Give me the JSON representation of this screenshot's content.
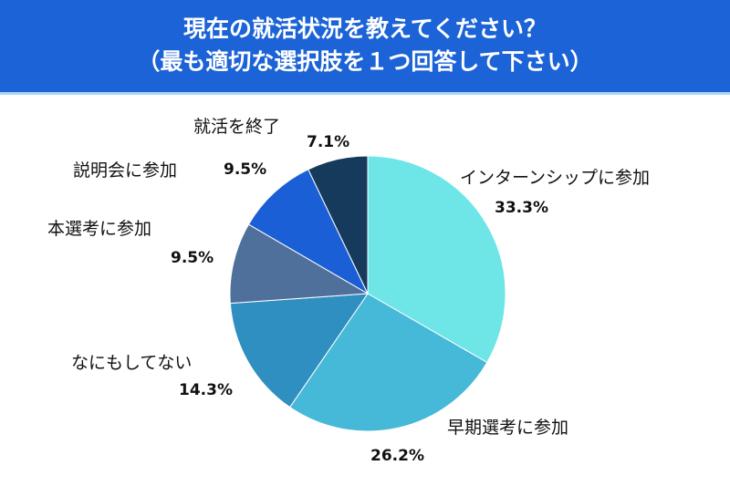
{
  "chart_data": {
    "type": "pie",
    "title": "現在の就活状況を教えてください？",
    "subtitle": "（最も適切な選択肢を１つ回答して下さい）",
    "slices": [
      {
        "label": "インターンシップに参加",
        "value": 33.3,
        "display": "33.3%",
        "color": "#6ee5e6"
      },
      {
        "label": "早期選考に参加",
        "value": 26.2,
        "display": "26.2%",
        "color": "#45b9d7"
      },
      {
        "label": "なにもしてない",
        "value": 14.3,
        "display": "14.3%",
        "color": "#2f8fc0"
      },
      {
        "label": "本選考に参加",
        "value": 9.5,
        "display": "9.5%",
        "color": "#50709c"
      },
      {
        "label": "説明会に参加",
        "value": 9.5,
        "display": "9.5%",
        "color": "#1a5fd6"
      },
      {
        "label": "就活を終了",
        "value": 7.1,
        "display": "7.1%",
        "color": "#163a5c"
      }
    ],
    "start": "top",
    "direction": "clockwise"
  }
}
